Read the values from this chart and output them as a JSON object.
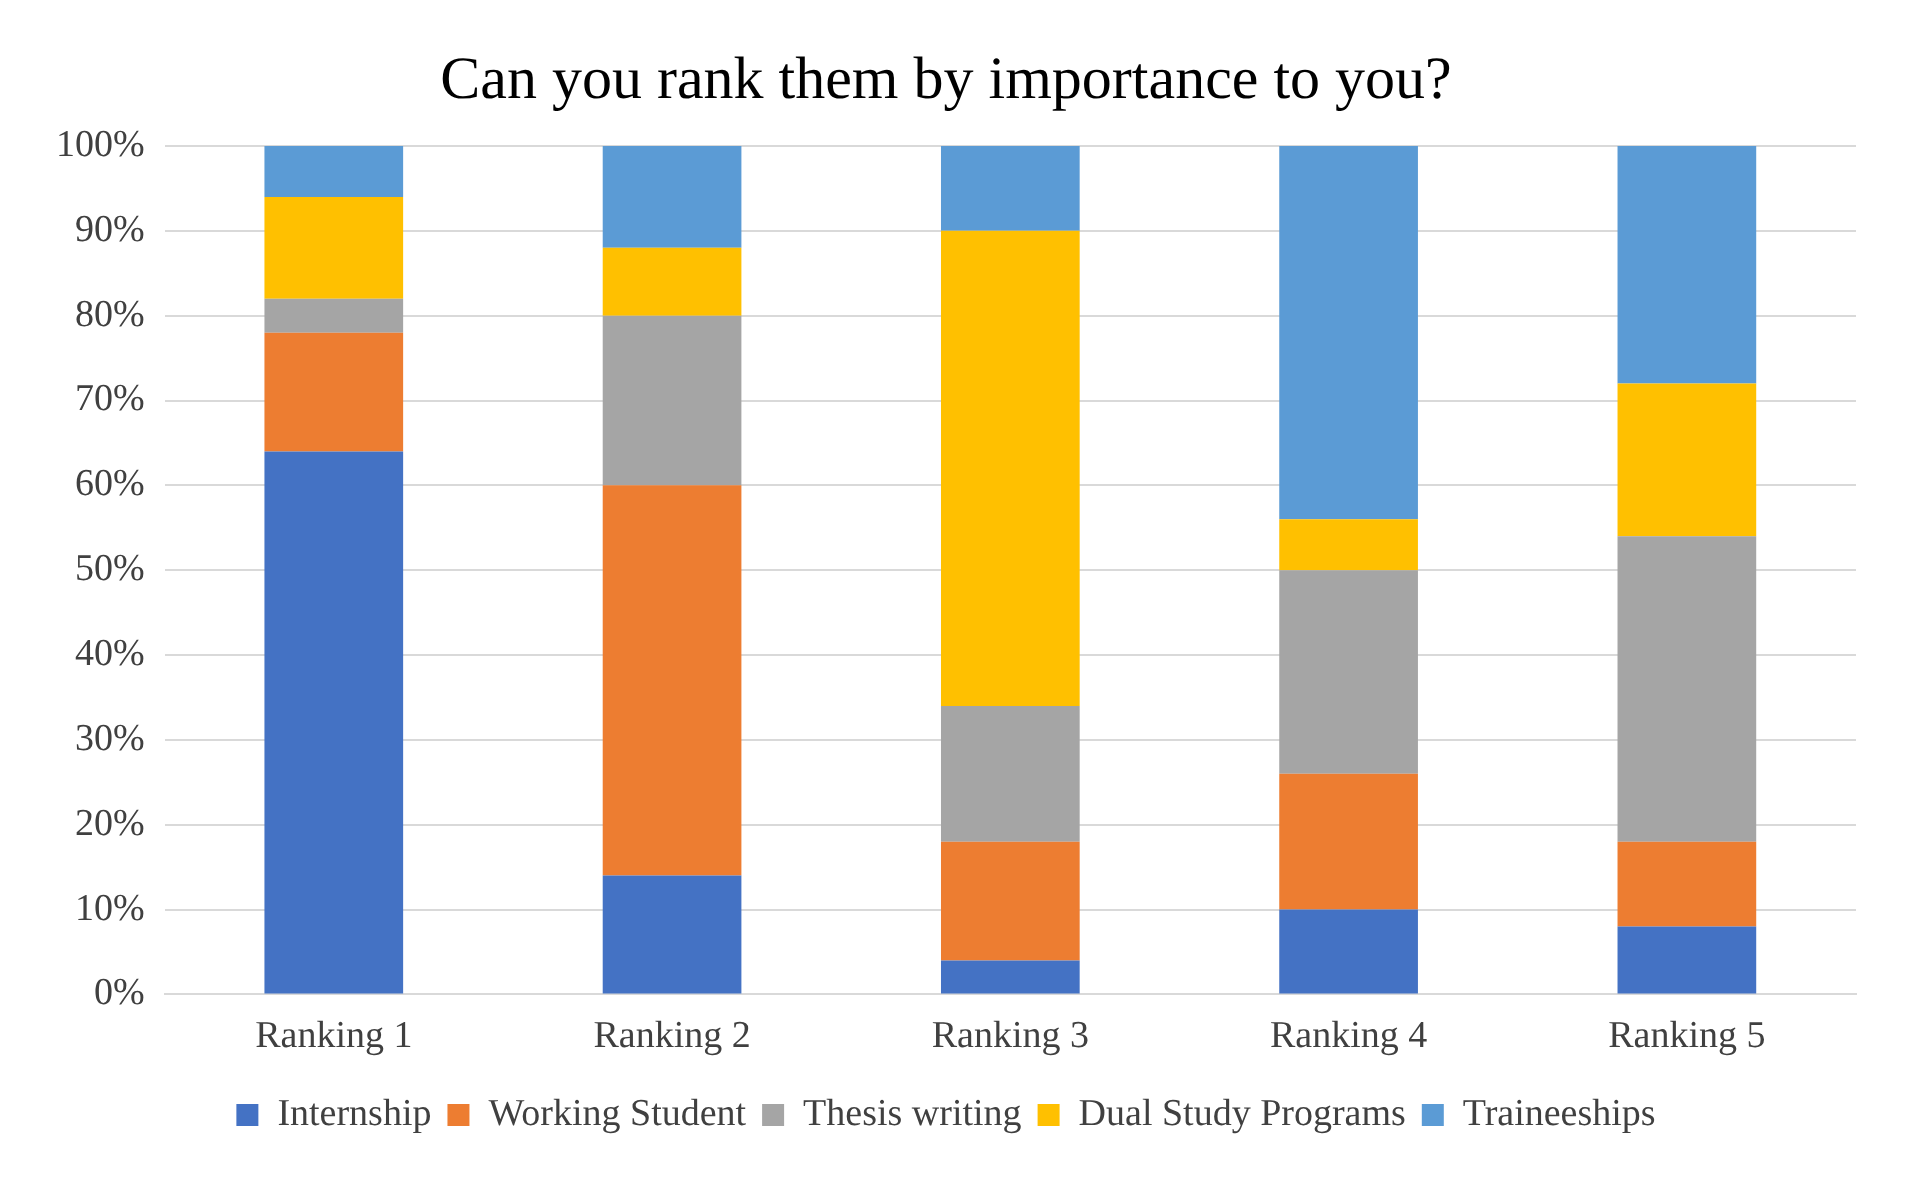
{
  "chart_data": {
    "type": "bar",
    "title": "Can you rank them by importance to you?",
    "categories": [
      "Ranking 1",
      "Ranking 2",
      "Ranking 3",
      "Ranking 4",
      "Ranking 5"
    ],
    "stacked": true,
    "series": [
      {
        "name": "Internship",
        "color": "#4472c4",
        "values": [
          64,
          14,
          4,
          10,
          8
        ]
      },
      {
        "name": "Working Student",
        "color": "#ed7d31",
        "values": [
          14,
          46,
          14,
          16,
          10
        ]
      },
      {
        "name": "Thesis writing",
        "color": "#a5a5a5",
        "values": [
          4,
          20,
          16,
          24,
          36
        ]
      },
      {
        "name": "Dual Study Programs",
        "color": "#ffc000",
        "values": [
          12,
          8,
          56,
          6,
          18
        ]
      },
      {
        "name": "Traineeships",
        "color": "#5b9bd5",
        "values": [
          6,
          12,
          10,
          44,
          28
        ]
      }
    ],
    "ylim": [
      0,
      100
    ],
    "yticks": [
      {
        "value": 0,
        "label": "0%"
      },
      {
        "value": 10,
        "label": "10%"
      },
      {
        "value": 20,
        "label": "20%"
      },
      {
        "value": 30,
        "label": "30%"
      },
      {
        "value": 40,
        "label": "40%"
      },
      {
        "value": 50,
        "label": "50%"
      },
      {
        "value": 60,
        "label": "60%"
      },
      {
        "value": 70,
        "label": "70%"
      },
      {
        "value": 80,
        "label": "80%"
      },
      {
        "value": 90,
        "label": "90%"
      },
      {
        "value": 100,
        "label": "100%"
      }
    ],
    "grid": "y",
    "legend": "bottom"
  }
}
